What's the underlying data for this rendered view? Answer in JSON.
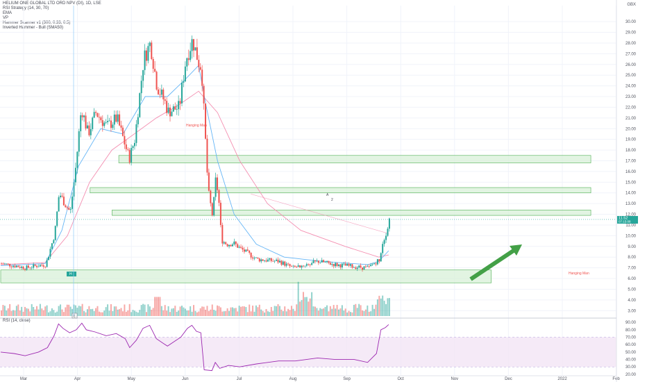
{
  "legend": {
    "symbol": "HELIUM ONE GLOBAL LTD ORD NPV (DI), 1D, LSE",
    "indicators": [
      "RSI Strategy (14, 30, 70)",
      "EMA",
      "VP",
      "Hammer Scanner v1 (300, 0.33, 0.5)",
      "Inverted Hammer - Bull (SMA50)"
    ]
  },
  "rsi_title": "RSI (14, close)",
  "currency": "GBX",
  "price_badges": {
    "last": "11.52",
    "countdown": "07:15:08"
  },
  "labels": {
    "hanging_man": "Hanging Man",
    "hammer_marker": "H",
    "earnings_marker": "E",
    "chart_marker_a": "A",
    "chart_marker_b": "2"
  },
  "colors": {
    "up": "#26a69a",
    "down": "#ef5350",
    "ema_fast": "#64b5f6",
    "ema_slow": "#f48fb1",
    "rsi": "#9c27b0",
    "zone_fill": "#d8f0d8",
    "zone_stroke": "#4caf50",
    "arrow": "#43a047"
  },
  "chart_data": {
    "type": "candlestick",
    "price_axis": {
      "ticks": [
        "3.00",
        "4.00",
        "5.00",
        "6.00",
        "7.00",
        "8.00",
        "9.00",
        "10.00",
        "11.00",
        "12.00",
        "13.00",
        "14.00",
        "15.00",
        "16.00",
        "17.00",
        "18.00",
        "19.00",
        "20.00",
        "21.00",
        "22.00",
        "23.00",
        "24.00",
        "25.00",
        "26.00",
        "27.00",
        "28.00",
        "29.00",
        "30.00"
      ],
      "range": [
        2.5,
        31.5
      ]
    },
    "time_axis": [
      "Mar",
      "Apr",
      "May",
      "Jun",
      "Jul",
      "Aug",
      "Sep",
      "Oct",
      "Nov",
      "Dec",
      "2022",
      "Feb"
    ],
    "rsi_axis": {
      "ticks": [
        "20.00",
        "30.00",
        "40.00",
        "50.00",
        "60.00",
        "70.00",
        "80.00",
        "90.00"
      ],
      "range": [
        19,
        92
      ],
      "band": [
        30,
        70
      ]
    },
    "bars": 231,
    "close_path": [
      [
        0,
        7.4
      ],
      [
        12,
        7.2
      ],
      [
        22,
        7.0
      ],
      [
        32,
        7.2
      ],
      [
        40,
        7.3
      ],
      [
        48,
        10.2
      ],
      [
        52,
        14.0
      ],
      [
        57,
        13.0
      ],
      [
        62,
        12.2
      ],
      [
        67,
        16.5
      ],
      [
        72,
        22.0
      ],
      [
        78,
        19.5
      ],
      [
        85,
        21.5
      ],
      [
        95,
        20.2
      ],
      [
        104,
        21.0
      ],
      [
        115,
        17.2
      ],
      [
        120,
        19.0
      ],
      [
        128,
        26.5
      ],
      [
        134,
        28.0
      ],
      [
        140,
        24.0
      ],
      [
        147,
        22.5
      ],
      [
        150,
        21.6
      ],
      [
        160,
        22.0
      ],
      [
        166,
        26.5
      ],
      [
        172,
        28.3
      ],
      [
        178,
        26.0
      ],
      [
        180,
        25.8
      ],
      [
        186,
        14.2
      ],
      [
        190,
        11.8
      ],
      [
        193,
        15.5
      ],
      [
        196,
        12.8
      ],
      [
        198,
        9.6
      ],
      [
        203,
        9.2
      ],
      [
        209,
        9.3
      ],
      [
        215,
        8.8
      ],
      [
        230,
        7.8
      ],
      [
        250,
        7.6
      ],
      [
        262,
        7.0
      ],
      [
        285,
        7.6
      ],
      [
        301,
        7.3
      ],
      [
        318,
        7.1
      ],
      [
        330,
        7.0
      ],
      [
        340,
        7.8
      ],
      [
        343,
        9.4
      ],
      [
        347,
        10.6
      ],
      [
        349,
        11.52
      ]
    ],
    "ema_fast": [
      [
        0,
        7.2
      ],
      [
        40,
        7.4
      ],
      [
        55,
        10.5
      ],
      [
        70,
        16.5
      ],
      [
        90,
        20.0
      ],
      [
        110,
        19.5
      ],
      [
        130,
        23.0
      ],
      [
        150,
        23.0
      ],
      [
        165,
        24.5
      ],
      [
        178,
        25.9
      ],
      [
        185,
        22.0
      ],
      [
        195,
        17.0
      ],
      [
        210,
        12.0
      ],
      [
        230,
        9.2
      ],
      [
        255,
        8.0
      ],
      [
        290,
        7.6
      ],
      [
        330,
        7.3
      ],
      [
        340,
        7.6
      ],
      [
        349,
        8.6
      ]
    ],
    "ema_slow": [
      [
        0,
        7.3
      ],
      [
        40,
        7.5
      ],
      [
        60,
        10.0
      ],
      [
        80,
        15.0
      ],
      [
        100,
        18.0
      ],
      [
        120,
        19.5
      ],
      [
        140,
        21.0
      ],
      [
        160,
        22.2
      ],
      [
        178,
        23.5
      ],
      [
        195,
        21.5
      ],
      [
        215,
        17.0
      ],
      [
        240,
        13.0
      ],
      [
        270,
        10.5
      ],
      [
        310,
        9.0
      ],
      [
        340,
        8.0
      ],
      [
        349,
        8.2
      ]
    ],
    "long_ma": [
      [
        225,
        13.9
      ],
      [
        349,
        10.2
      ]
    ],
    "rsi": [
      [
        0,
        50
      ],
      [
        12,
        48
      ],
      [
        22,
        45
      ],
      [
        34,
        50
      ],
      [
        42,
        56
      ],
      [
        48,
        72
      ],
      [
        52,
        88
      ],
      [
        56,
        82
      ],
      [
        62,
        76
      ],
      [
        68,
        80
      ],
      [
        73,
        89
      ],
      [
        77,
        80
      ],
      [
        85,
        77
      ],
      [
        95,
        72
      ],
      [
        104,
        75
      ],
      [
        112,
        68
      ],
      [
        116,
        56
      ],
      [
        122,
        66
      ],
      [
        128,
        82
      ],
      [
        134,
        86
      ],
      [
        140,
        68
      ],
      [
        146,
        62
      ],
      [
        150,
        58
      ],
      [
        156,
        64
      ],
      [
        162,
        70
      ],
      [
        168,
        82
      ],
      [
        172,
        86
      ],
      [
        176,
        78
      ],
      [
        180,
        76
      ],
      [
        183,
        26
      ],
      [
        190,
        25
      ],
      [
        193,
        36
      ],
      [
        197,
        28
      ],
      [
        205,
        32
      ],
      [
        215,
        30
      ],
      [
        230,
        34
      ],
      [
        250,
        38
      ],
      [
        265,
        38
      ],
      [
        285,
        42
      ],
      [
        301,
        40
      ],
      [
        318,
        40
      ],
      [
        330,
        36
      ],
      [
        338,
        48
      ],
      [
        342,
        80
      ],
      [
        346,
        83
      ],
      [
        349,
        87
      ]
    ],
    "zones": [
      {
        "x0": 70,
        "x1": 349,
        "ymin": 16.8,
        "ymax": 17.5
      },
      {
        "x0": 53,
        "x1": 349,
        "ymin": 14.0,
        "ymax": 14.5
      },
      {
        "x0": 66,
        "x1": 349,
        "ymin": 11.9,
        "ymax": 12.4
      },
      {
        "x0": 0,
        "x1": 290,
        "ymin": 5.6,
        "ymax": 6.8
      }
    ],
    "volume": {
      "max_value": 100
    }
  }
}
